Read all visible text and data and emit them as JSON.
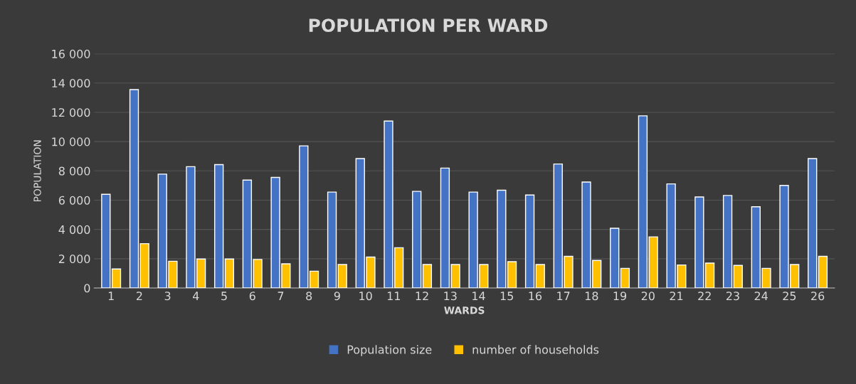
{
  "chart_data": {
    "type": "bar",
    "title": "POPULATION PER WARD",
    "xlabel": "WARDS",
    "ylabel": "POPULATION",
    "categories": [
      "1",
      "2",
      "3",
      "4",
      "5",
      "6",
      "7",
      "8",
      "9",
      "10",
      "11",
      "12",
      "13",
      "14",
      "15",
      "16",
      "17",
      "18",
      "19",
      "20",
      "21",
      "22",
      "23",
      "24",
      "25",
      "26"
    ],
    "series": [
      {
        "name": "Population size",
        "color": "#4472c4",
        "values": [
          6400,
          13550,
          7780,
          8290,
          8430,
          7370,
          7550,
          9710,
          6550,
          8840,
          11400,
          6600,
          8190,
          6550,
          6680,
          6350,
          8470,
          7240,
          4080,
          11760,
          7110,
          6220,
          6320,
          5550,
          7010,
          8840
        ]
      },
      {
        "name": "number of households",
        "color": "#ffc000",
        "values": [
          1300,
          3030,
          1830,
          1980,
          1980,
          1950,
          1650,
          1150,
          1600,
          2110,
          2750,
          1600,
          1600,
          1600,
          1800,
          1600,
          2160,
          1880,
          1340,
          3490,
          1570,
          1700,
          1540,
          1340,
          1600,
          2160
        ]
      }
    ],
    "ylim": [
      0,
      16000
    ],
    "yticks": [
      0,
      {
        "value": 2000,
        "label": "2 000"
      },
      {
        "value": 4000,
        "label": "4 000"
      },
      {
        "value": 6000,
        "label": "6 000"
      },
      {
        "value": 8000,
        "label": "8 000"
      },
      {
        "value": 10000,
        "label": "10 000"
      },
      {
        "value": 12000,
        "label": "12 000"
      },
      {
        "value": 14000,
        "label": "14 000"
      },
      {
        "value": 16000,
        "label": "16 000"
      }
    ],
    "grid": "y",
    "legend": "bottom"
  }
}
